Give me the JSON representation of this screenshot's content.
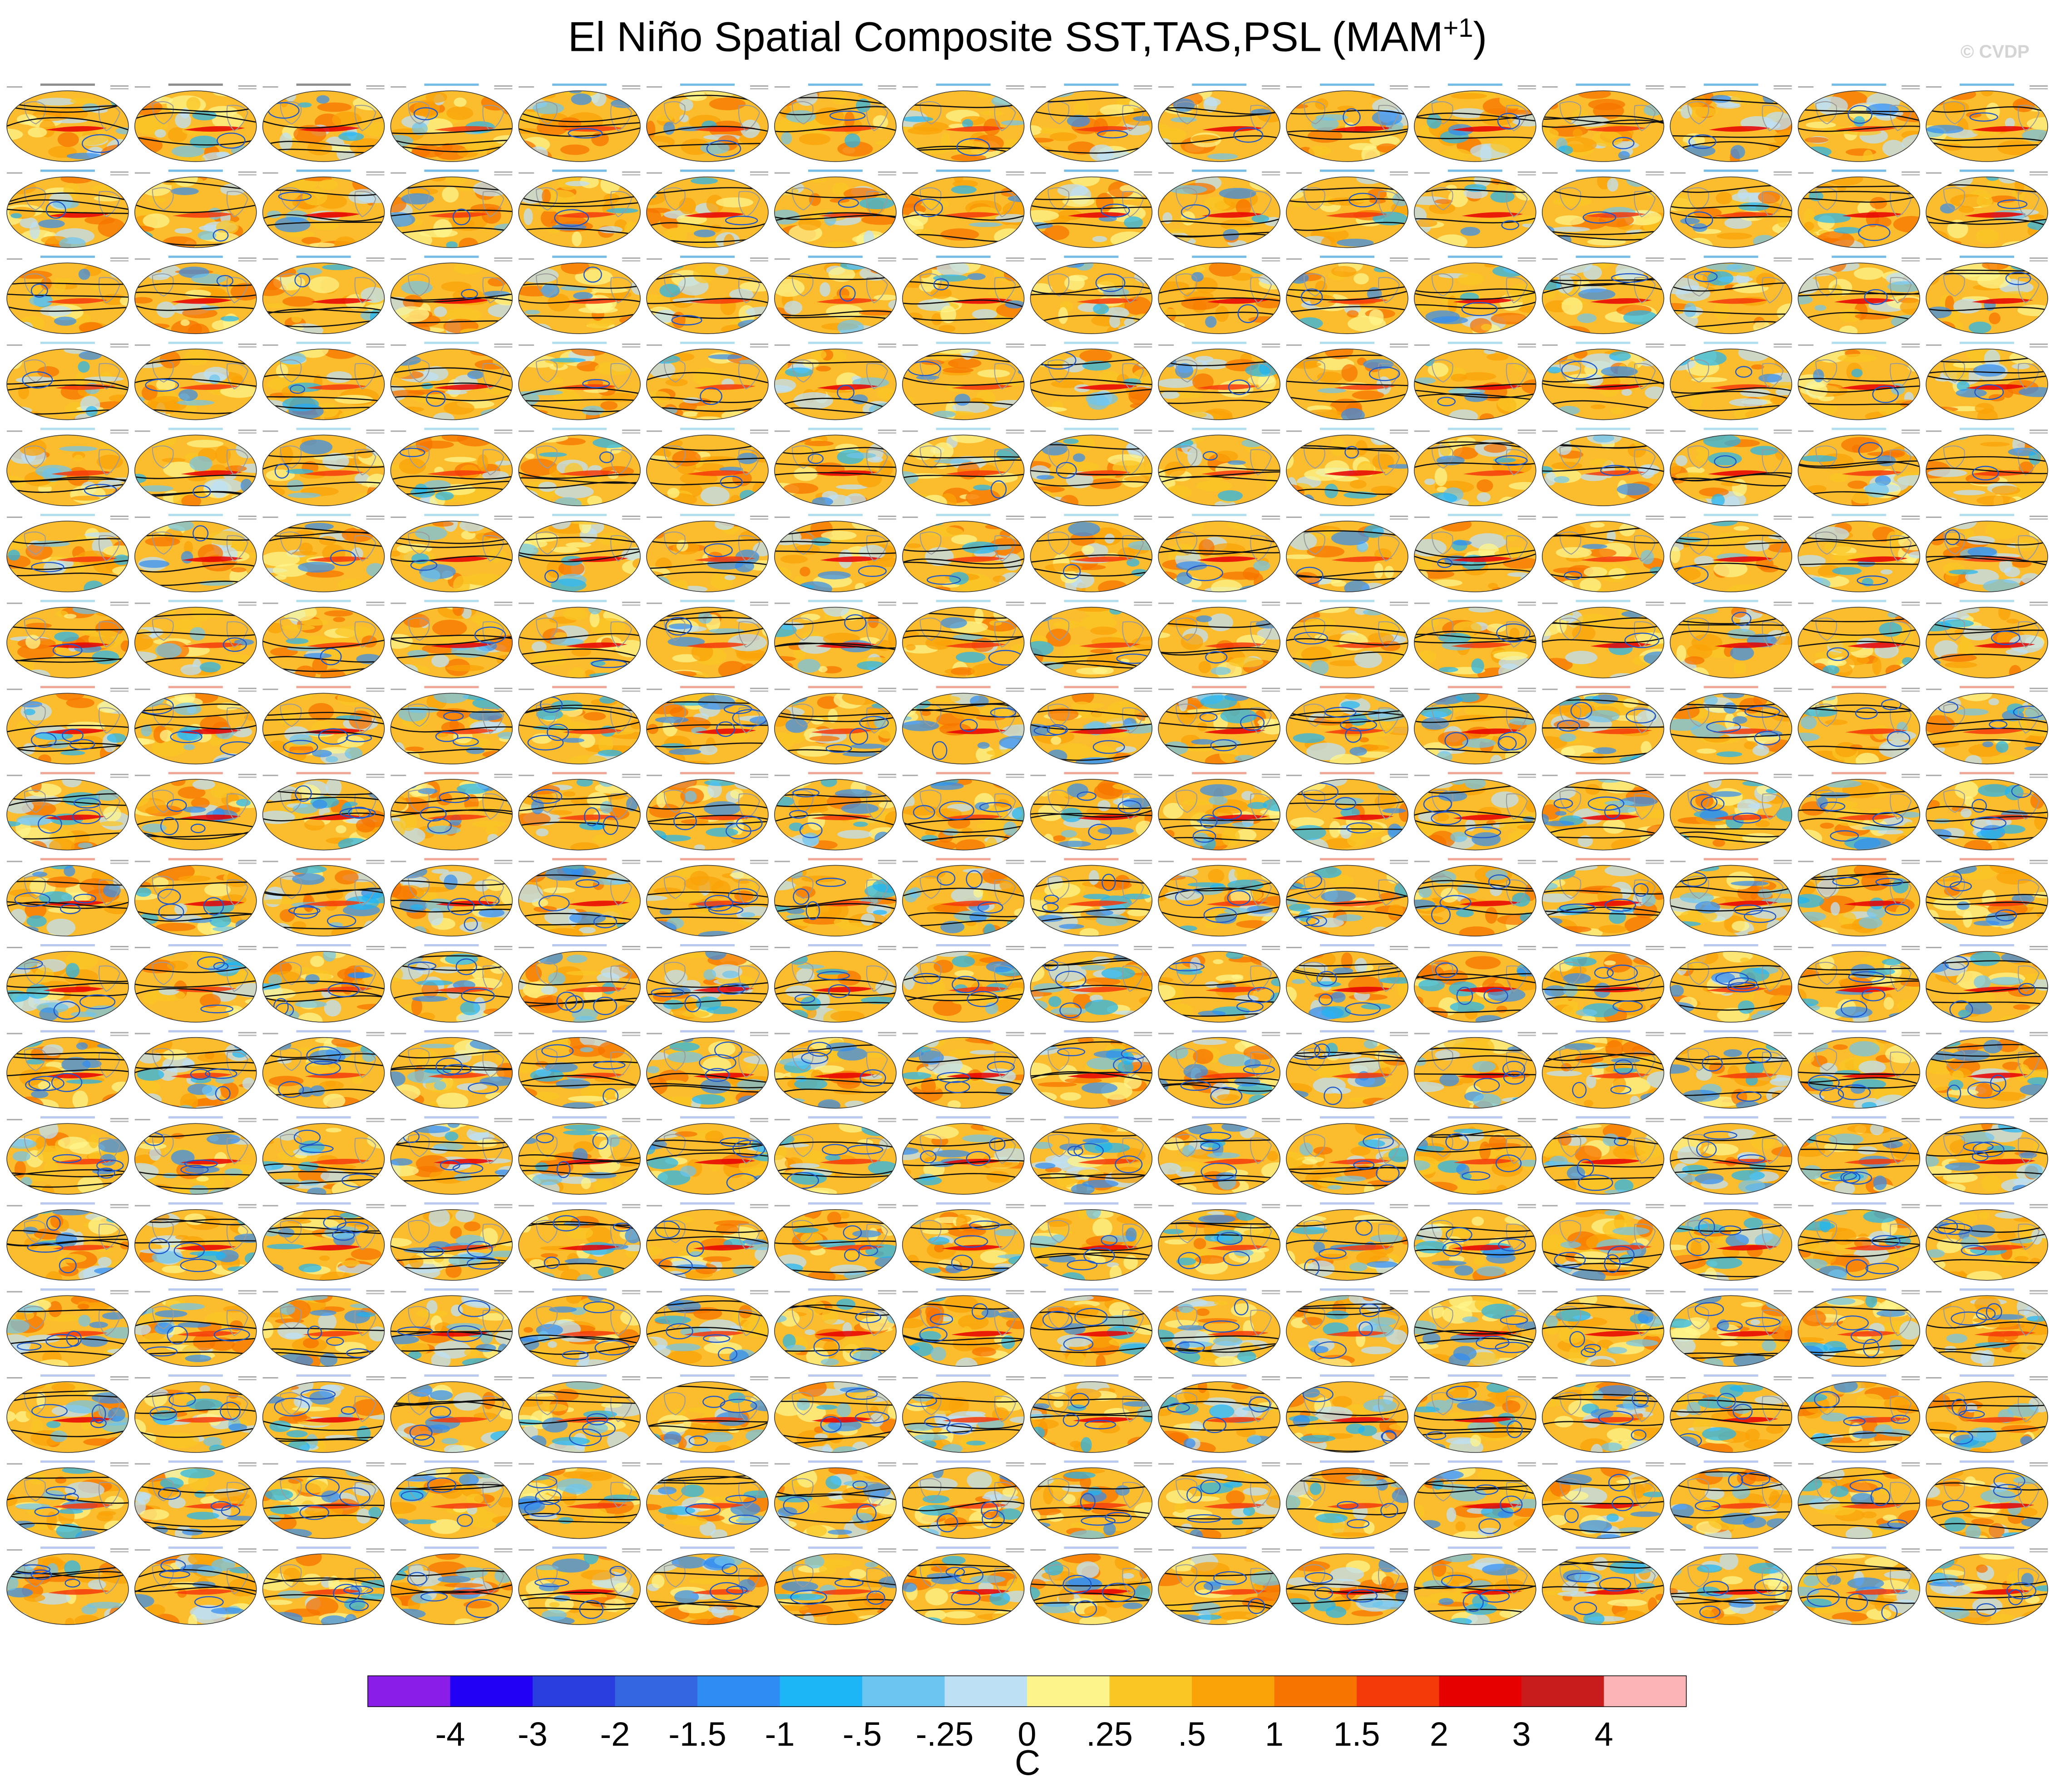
{
  "header": {
    "title": "El Niño Spatial Composite SST,TAS,PSL (MAM",
    "title_sup": "+1",
    "title_close": ")",
    "credit": "© CVDP"
  },
  "chart_data": {
    "type": "heatmap",
    "title": "El Niño Spatial Composite SST,TAS,PSL (MAM+1)",
    "layout": {
      "rows": 18,
      "cols": 16,
      "panel_shape": "global-map"
    },
    "variables": [
      "SST",
      "TAS",
      "PSL"
    ],
    "season": "MAM+1",
    "colorbar": {
      "units": "C",
      "tick_labels": [
        "-4",
        "-3",
        "-2",
        "-1.5",
        "-1",
        "-.5",
        "-.25",
        "0",
        ".25",
        ".5",
        "1",
        "1.5",
        "2",
        "3",
        "4"
      ],
      "colors": [
        "#8a1de8",
        "#2100f5",
        "#2a3ee0",
        "#3366e0",
        "#2f8cf2",
        "#1cb5f5",
        "#6cc4f0",
        "#bde0f5",
        "#fdf58c",
        "#f9c624",
        "#f9a308",
        "#f77400",
        "#f53a0a",
        "#e60000",
        "#c81c1c",
        "#fdb4b6"
      ]
    },
    "observation_panel_labels": [
      "ERSSTv5 / BEST / ERA5",
      "ERSSTv5_1 / GISTEMP / ERA20c_ERA5_comb",
      "HadISST v1 / HadCRUT5.0.2 / ERA5_0"
    ],
    "model_groups": [
      {
        "name": "ACCESS-ESM1-5",
        "color": "#3aa0dc",
        "rows": [
          0,
          2
        ]
      },
      {
        "name": "CanESM5",
        "color": "#8fd0e8",
        "rows": [
          3,
          6
        ]
      },
      {
        "name": "CESM1",
        "color": "#e8806a",
        "rows": [
          7,
          9
        ]
      },
      {
        "name": "CESM2",
        "color": "#9ab0e8",
        "rows": [
          10,
          17
        ]
      }
    ]
  }
}
